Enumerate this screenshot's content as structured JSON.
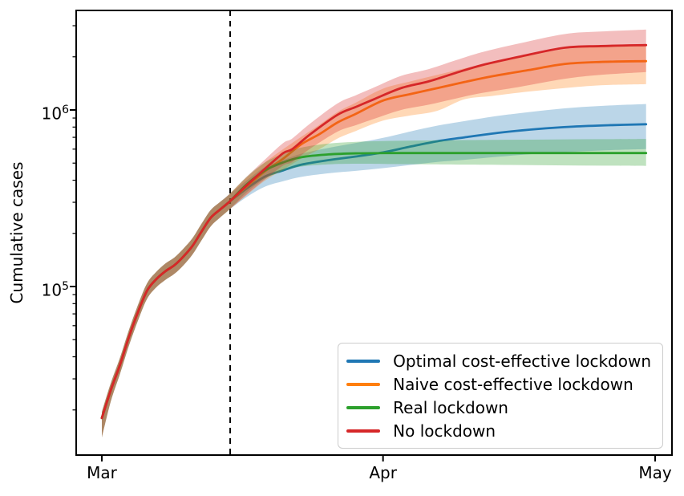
{
  "chart_data": {
    "type": "line",
    "title": "",
    "ylabel": "Cumulative cases",
    "xlabel": "",
    "y_scale": "log",
    "y_range": [
      11000,
      3700000
    ],
    "x_unit": "days since Mar 1",
    "x_range_days": [
      -2.85,
      62.9
    ],
    "grid": false,
    "legend_position": "lower right",
    "x_ticks": [
      {
        "label": "Mar",
        "day": 0
      },
      {
        "label": "Apr",
        "day": 31
      },
      {
        "label": "May",
        "day": 61
      }
    ],
    "y_ticks": [
      {
        "base": "10",
        "exp": "5",
        "value": 100000
      },
      {
        "base": "10",
        "exp": "6",
        "value": 1000000
      }
    ],
    "lockdown_line": {
      "day": 14.15,
      "style": "dashed",
      "color": "#000000"
    },
    "band_opacity": 0.3,
    "series": [
      {
        "name": "Optimal cost-effective lockdown",
        "color": "#1f77b4",
        "days": [
          0,
          1,
          2,
          3,
          4,
          5,
          6,
          7,
          8,
          9,
          10,
          11,
          12,
          13,
          14,
          16,
          18,
          20,
          22,
          25,
          28,
          31,
          34,
          37,
          40,
          44,
          48,
          52,
          56,
          60
        ],
        "values": [
          18000,
          26000,
          36000,
          52000,
          72000,
          95000,
          110000,
          122000,
          132000,
          148000,
          170000,
          205000,
          245000,
          272000,
          300000,
          360000,
          420000,
          455000,
          490000,
          520000,
          545000,
          575000,
          620000,
          665000,
          700000,
          745000,
          780000,
          805000,
          820000,
          830000
        ],
        "lower": [
          14000,
          22500,
          32000,
          46500,
          64500,
          85500,
          99000,
          109000,
          118000,
          132000,
          152000,
          183000,
          219000,
          245000,
          271000,
          322000,
          368000,
          395000,
          418000,
          438000,
          452000,
          468000,
          488000,
          508000,
          522000,
          545000,
          565000,
          580000,
          592000,
          600000
        ],
        "upper": [
          19500,
          28500,
          39500,
          57000,
          79000,
          104500,
          121000,
          135000,
          146000,
          164000,
          188000,
          227000,
          271000,
          300000,
          331000,
          400000,
          475000,
          520000,
          565000,
          610000,
          650000,
          695000,
          755000,
          815000,
          865000,
          930000,
          985000,
          1030000,
          1060000,
          1080000
        ]
      },
      {
        "name": "Naive cost-effective lockdown",
        "color": "#ff7f0e",
        "days": [
          0,
          1,
          2,
          3,
          4,
          5,
          6,
          7,
          8,
          9,
          10,
          11,
          12,
          13,
          14,
          16,
          18,
          20,
          22,
          24,
          26,
          28,
          31,
          34,
          37,
          40,
          43,
          47,
          51,
          55,
          60
        ],
        "values": [
          18000,
          26000,
          36000,
          52000,
          72000,
          95000,
          110000,
          122000,
          132000,
          148000,
          170000,
          205000,
          245000,
          272000,
          300000,
          370000,
          450000,
          530000,
          640000,
          730000,
          850000,
          950000,
          1130000,
          1230000,
          1330000,
          1440000,
          1550000,
          1680000,
          1820000,
          1870000,
          1890000
        ],
        "lower": [
          14000,
          22500,
          32000,
          46500,
          64500,
          85500,
          99000,
          109000,
          118000,
          132000,
          152000,
          183000,
          219000,
          245000,
          271000,
          330000,
          398000,
          460000,
          530000,
          600000,
          690000,
          760000,
          870000,
          930000,
          990000,
          1150000,
          1200000,
          1270000,
          1330000,
          1380000,
          1400000
        ],
        "upper": [
          19500,
          28500,
          39500,
          57000,
          79000,
          104500,
          121000,
          135000,
          146000,
          164000,
          188000,
          227000,
          271000,
          300000,
          331000,
          415000,
          505000,
          600000,
          705000,
          825000,
          975000,
          1100000,
          1320000,
          1450000,
          1580000,
          1720000,
          1860000,
          2030000,
          2210000,
          2280000,
          2310000
        ]
      },
      {
        "name": "Real lockdown",
        "color": "#2ca02c",
        "days": [
          0,
          1,
          2,
          3,
          4,
          5,
          6,
          7,
          8,
          9,
          10,
          11,
          12,
          13,
          14,
          16,
          18,
          20,
          22,
          25,
          28,
          32,
          36,
          40,
          45,
          50,
          55,
          60
        ],
        "values": [
          18000,
          26000,
          36000,
          52000,
          72000,
          95000,
          110000,
          122000,
          132000,
          148000,
          170000,
          205000,
          245000,
          272000,
          300000,
          380000,
          455000,
          505000,
          540000,
          560000,
          568000,
          570000,
          570000,
          570000,
          570000,
          570000,
          570000,
          570000
        ],
        "lower": [
          14000,
          22500,
          32000,
          46500,
          64500,
          85500,
          99000,
          109000,
          118000,
          132000,
          152000,
          183000,
          219000,
          245000,
          271000,
          343000,
          408000,
          450000,
          478000,
          492000,
          496000,
          494000,
          492000,
          490000,
          488000,
          486000,
          484000,
          482000
        ],
        "upper": [
          19500,
          28500,
          39500,
          57000,
          79000,
          104500,
          121000,
          135000,
          146000,
          164000,
          188000,
          227000,
          271000,
          300000,
          331000,
          420000,
          505000,
          565000,
          612000,
          645000,
          660000,
          668000,
          672000,
          675000,
          678000,
          681000,
          683000,
          685000
        ]
      },
      {
        "name": "No lockdown",
        "color": "#d62728",
        "days": [
          0,
          1,
          2,
          3,
          4,
          5,
          6,
          7,
          8,
          9,
          10,
          11,
          12,
          13,
          14,
          16,
          18,
          20,
          21,
          23,
          26,
          28,
          30,
          33,
          36,
          39,
          42,
          46,
          51,
          55,
          60
        ],
        "values": [
          18000,
          26000,
          36000,
          52000,
          72000,
          95000,
          110000,
          122000,
          132000,
          148000,
          170000,
          205000,
          245000,
          272000,
          300000,
          375000,
          465000,
          570000,
          600000,
          730000,
          940000,
          1040000,
          1150000,
          1330000,
          1450000,
          1620000,
          1800000,
          2000000,
          2250000,
          2300000,
          2330000
        ],
        "lower": [
          14000,
          22500,
          32000,
          46500,
          64500,
          85500,
          99000,
          109000,
          118000,
          132000,
          152000,
          183000,
          219000,
          245000,
          271000,
          333000,
          405000,
          485000,
          508000,
          605000,
          755000,
          820000,
          890000,
          1000000,
          1070000,
          1160000,
          1250000,
          1350000,
          1500000,
          1580000,
          1640000
        ],
        "upper": [
          19500,
          28500,
          39500,
          57000,
          79000,
          104500,
          121000,
          135000,
          146000,
          164000,
          188000,
          227000,
          271000,
          300000,
          331000,
          420000,
          525000,
          650000,
          690000,
          840000,
          1090000,
          1210000,
          1340000,
          1560000,
          1700000,
          1910000,
          2130000,
          2380000,
          2690000,
          2780000,
          2850000
        ]
      }
    ]
  }
}
